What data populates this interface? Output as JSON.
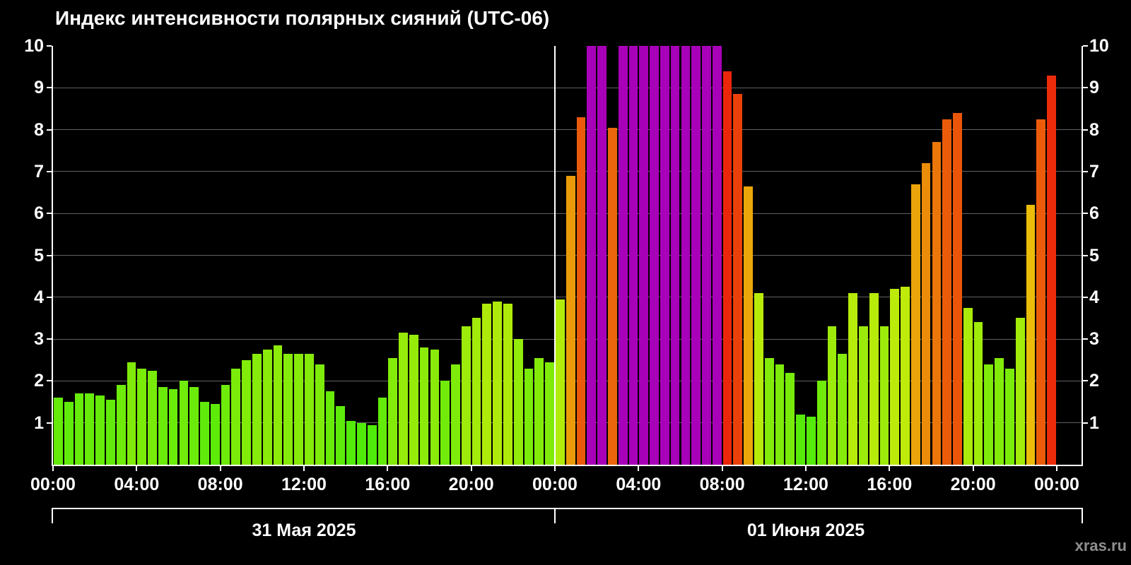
{
  "title": "Индекс интенсивности полярных сияний (UTC-06)",
  "watermark": "xras.ru",
  "colors": {
    "background": "#000000",
    "axis": "#ffffff",
    "text": "#ffffff",
    "grid": "#c0c0c0",
    "watermark": "#8f8f8f",
    "saturated_purple": "#a800b8",
    "green_low": "#44d90c",
    "yellow_green": "#aadf00",
    "orange": "#ff8c00",
    "red_high": "#ff2200"
  },
  "chart_data": {
    "type": "bar",
    "title": "Индекс интенсивности полярных сияний (UTC-06)",
    "ylabel": "",
    "xlabel": "",
    "ylim": [
      0,
      10
    ],
    "yticks": [
      1,
      2,
      3,
      4,
      5,
      6,
      7,
      8,
      9,
      10
    ],
    "grid": "horizontal",
    "interval_minutes": 30,
    "hours_span": 48,
    "saturation_value": 10,
    "xtick_step_hours": 4,
    "xtick_labels": [
      "00:00",
      "04:00",
      "08:00",
      "12:00",
      "16:00",
      "20:00",
      "00:00",
      "04:00",
      "08:00",
      "12:00",
      "16:00",
      "20:00",
      "00:00"
    ],
    "day_labels": [
      "31 Мая 2025",
      "01 Июня 2025"
    ],
    "values": [
      1.6,
      1.5,
      1.7,
      1.7,
      1.65,
      1.55,
      1.9,
      2.45,
      2.3,
      2.25,
      1.85,
      1.8,
      2.0,
      1.85,
      1.5,
      1.45,
      1.9,
      2.3,
      2.5,
      2.65,
      2.75,
      2.85,
      2.65,
      2.65,
      2.65,
      2.4,
      1.75,
      1.4,
      1.05,
      1.0,
      0.95,
      1.6,
      2.55,
      3.15,
      3.1,
      2.8,
      2.75,
      2.0,
      2.4,
      3.3,
      3.5,
      3.85,
      3.9,
      3.85,
      3.0,
      2.3,
      2.55,
      2.45,
      3.95,
      6.9,
      8.3,
      10,
      10,
      8.05,
      10,
      10,
      10,
      10,
      10,
      10,
      10,
      10,
      10,
      10,
      9.4,
      8.85,
      6.65,
      4.1,
      2.55,
      2.4,
      2.2,
      1.2,
      1.15,
      2.0,
      3.3,
      2.65,
      4.1,
      3.3,
      4.1,
      3.3,
      4.2,
      4.25,
      6.7,
      7.2,
      7.7,
      8.25,
      8.4,
      3.75,
      3.4,
      2.4,
      2.55,
      2.3,
      3.5,
      6.2,
      8.25,
      9.3
    ]
  }
}
